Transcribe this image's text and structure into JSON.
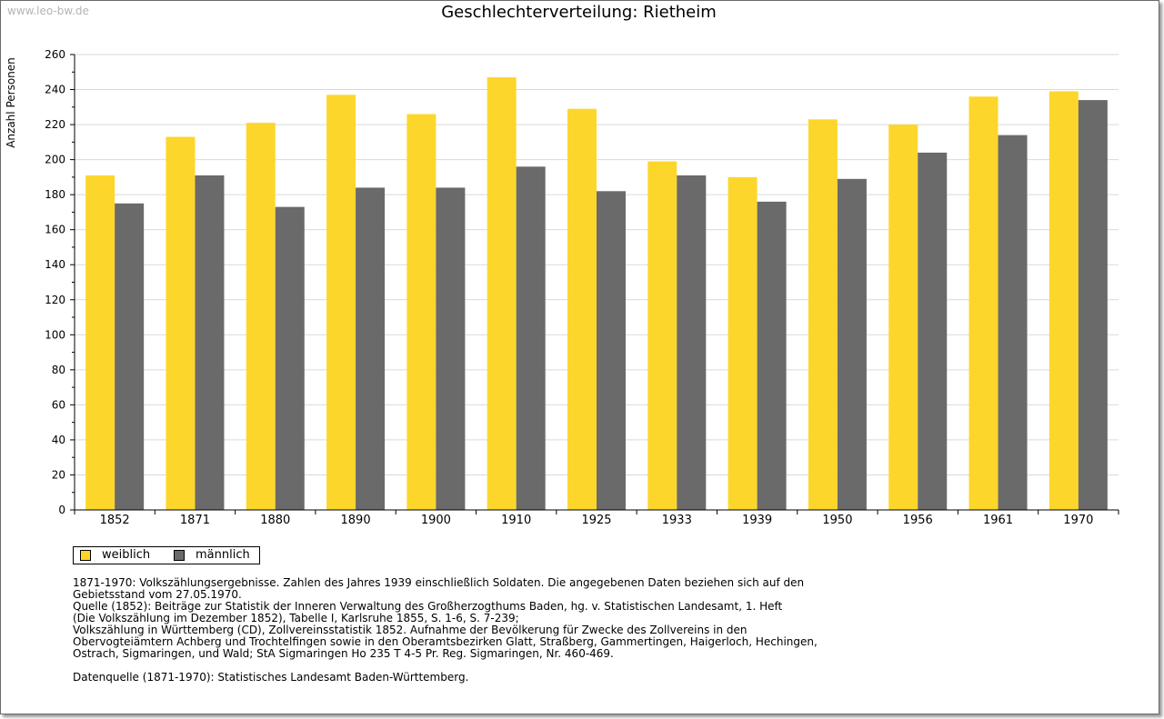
{
  "watermark": "www.leo-bw.de",
  "colors": {
    "weiblich": "#fdd62b",
    "maennlich": "#6a6a6a",
    "grid": "#d9d9d9"
  },
  "chart_data": {
    "type": "bar",
    "title": "Geschlechterverteilung: Rietheim",
    "xlabel": "",
    "ylabel": "Anzahl Personen",
    "ylim": [
      0,
      260
    ],
    "yticks": [
      0,
      20,
      40,
      60,
      80,
      100,
      120,
      140,
      160,
      180,
      200,
      220,
      240,
      260
    ],
    "grid": true,
    "legend_position": "bottom-left",
    "categories": [
      "1852",
      "1871",
      "1880",
      "1890",
      "1900",
      "1910",
      "1925",
      "1933",
      "1939",
      "1950",
      "1956",
      "1961",
      "1970"
    ],
    "series": [
      {
        "name": "weiblich",
        "values": [
          191,
          213,
          221,
          237,
          226,
          247,
          229,
          199,
          190,
          223,
          220,
          236,
          239
        ]
      },
      {
        "name": "männlich",
        "values": [
          175,
          191,
          173,
          184,
          184,
          196,
          182,
          191,
          176,
          189,
          204,
          214,
          234
        ]
      }
    ]
  },
  "legend": {
    "weiblich": "weiblich",
    "maennlich": "männlich"
  },
  "notes": {
    "lines": [
      "1871-1970: Volkszählungsergebnisse. Zahlen des Jahres 1939 einschließlich Soldaten. Die angegebenen Daten beziehen sich auf den",
      "Gebietsstand vom 27.05.1970.",
      "Quelle (1852): Beiträge zur Statistik der Inneren Verwaltung des Großherzogthums Baden, hg. v. Statistischen Landesamt, 1. Heft",
      "(Die Volkszählung im Dezember 1852), Tabelle I, Karlsruhe 1855, S. 1-6, S. 7-239;",
      "Volkszählung in Württemberg (CD), Zollvereinsstatistik 1852. Aufnahme der Bevölkerung für Zwecke des Zollvereins in den",
      "Obervogteiämtern Achberg und Trochtelfingen sowie in den Oberamtsbezirken Glatt, Straßberg, Gammertingen, Haigerloch, Hechingen,",
      "Ostrach, Sigmaringen, und Wald; StA Sigmaringen Ho 235 T 4-5 Pr. Reg. Sigmaringen, Nr. 460-469."
    ],
    "source": "Datenquelle (1871-1970): Statistisches Landesamt Baden-Württemberg."
  }
}
